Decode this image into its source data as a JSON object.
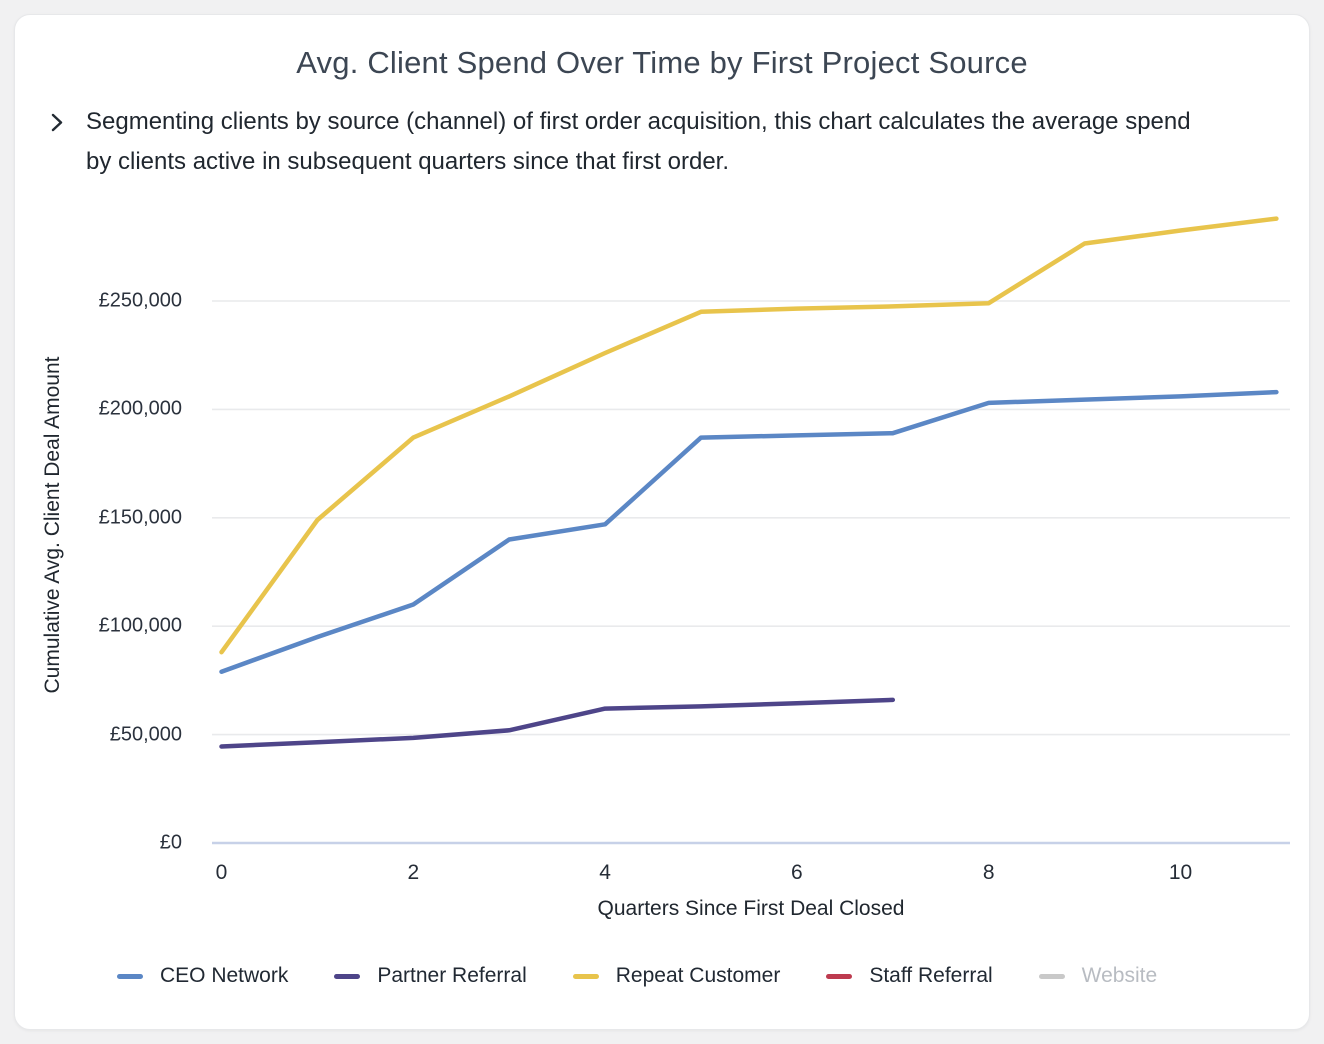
{
  "header": {
    "title": "Avg. Client Spend Over Time by First Project Source",
    "description": "Segmenting clients by source (channel) of first order acquisition, this chart calculates the average spend by clients active in subsequent quarters since that first order.",
    "collapse_icon": "chevron-right"
  },
  "chart_data": {
    "type": "line",
    "title": "Avg. Client Spend Over Time by First Project Source",
    "xlabel": "Quarters Since First Deal Closed",
    "ylabel": "Cumulative Avg. Client Deal Amount",
    "currency": "GBP",
    "grid": true,
    "legend_position": "bottom",
    "xlim": [
      0,
      11.2
    ],
    "ylim": [
      0,
      300000
    ],
    "x_ticks": [
      {
        "value": 0,
        "label": "0"
      },
      {
        "value": 2,
        "label": "2"
      },
      {
        "value": 4,
        "label": "4"
      },
      {
        "value": 6,
        "label": "6"
      },
      {
        "value": 8,
        "label": "8"
      },
      {
        "value": 10,
        "label": "10"
      }
    ],
    "y_ticks": [
      {
        "value": 0,
        "label": "£0"
      },
      {
        "value": 50000,
        "label": "£50,000"
      },
      {
        "value": 100000,
        "label": "£100,000"
      },
      {
        "value": 150000,
        "label": "£150,000"
      },
      {
        "value": 200000,
        "label": "£200,000"
      },
      {
        "value": 250000,
        "label": "£250,000"
      }
    ],
    "grid_color": "#e9eaec",
    "axis_line_color": "#c7d1e8",
    "series": [
      {
        "name": "CEO Network",
        "color": "#5b87c5",
        "x": [
          0,
          1,
          2,
          3,
          4,
          5,
          6,
          7,
          8,
          9,
          10,
          11
        ],
        "values": [
          79000,
          95000,
          110000,
          140000,
          147000,
          187000,
          188000,
          189000,
          203000,
          204500,
          206000,
          208000
        ]
      },
      {
        "name": "Partner Referral",
        "color": "#4e4589",
        "x": [
          0,
          1,
          2,
          3,
          4,
          5,
          6,
          7
        ],
        "values": [
          44500,
          46500,
          48500,
          52000,
          62000,
          63000,
          64500,
          66000
        ]
      },
      {
        "name": "Repeat Customer",
        "color": "#e8c44c",
        "x": [
          0,
          1,
          2,
          3,
          4,
          5,
          6,
          7,
          8,
          9,
          10,
          11
        ],
        "values": [
          88000,
          149000,
          187000,
          206000,
          226000,
          245000,
          246500,
          247500,
          249000,
          276500,
          282500,
          288000
        ]
      },
      {
        "name": "Staff Referral",
        "color": "#bd3b4f",
        "x": [],
        "values": [],
        "line_visible": false
      },
      {
        "name": "Website",
        "color": "#c9c9c9",
        "x": [],
        "values": [],
        "line_visible": false,
        "hidden": true,
        "dimmed_in_legend": true
      }
    ]
  }
}
